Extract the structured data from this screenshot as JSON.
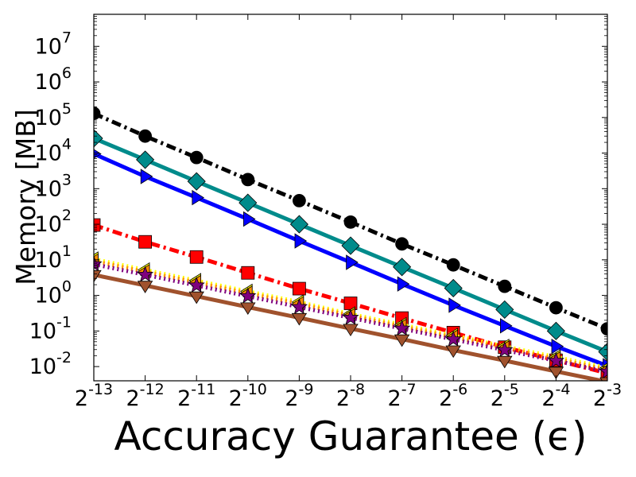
{
  "chart_data": {
    "type": "line",
    "title": "",
    "xlabel": "Accuracy Guarantee (ϵ)",
    "ylabel": "Memory [MB]",
    "x_scale": "log2",
    "y_scale": "log10",
    "x_exponents": [
      -13,
      -12,
      -11,
      -10,
      -9,
      -8,
      -7,
      -6,
      -5,
      -4,
      -3
    ],
    "xlim_exponents": [
      -13,
      -3
    ],
    "ylim_exponents": [
      -2.4,
      7.9
    ],
    "y_tick_exponents": [
      -2,
      -1,
      0,
      1,
      2,
      3,
      4,
      5,
      6,
      7
    ],
    "x_tick_labels": [
      {
        "base": "2",
        "exp": "-13"
      },
      {
        "base": "2",
        "exp": "-12"
      },
      {
        "base": "2",
        "exp": "-11"
      },
      {
        "base": "2",
        "exp": "-10"
      },
      {
        "base": "2",
        "exp": "-9"
      },
      {
        "base": "2",
        "exp": "-8"
      },
      {
        "base": "2",
        "exp": "-7"
      },
      {
        "base": "2",
        "exp": "-6"
      },
      {
        "base": "2",
        "exp": "-5"
      },
      {
        "base": "2",
        "exp": "-4"
      },
      {
        "base": "2",
        "exp": "-3"
      }
    ],
    "y_tick_labels": [
      {
        "base": "10",
        "exp": "-2"
      },
      {
        "base": "10",
        "exp": "-1"
      },
      {
        "base": "10",
        "exp": "0"
      },
      {
        "base": "10",
        "exp": "1"
      },
      {
        "base": "10",
        "exp": "2"
      },
      {
        "base": "10",
        "exp": "3"
      },
      {
        "base": "10",
        "exp": "4"
      },
      {
        "base": "10",
        "exp": "5"
      },
      {
        "base": "10",
        "exp": "6"
      },
      {
        "base": "10",
        "exp": "7"
      }
    ],
    "grid": false,
    "legend": "none",
    "series": [
      {
        "color": "#000000",
        "dash": "dashdot",
        "marker": "circle",
        "values": [
          130000,
          30000,
          7500,
          1800,
          460,
          115,
          28,
          7.2,
          1.8,
          0.45,
          0.115
        ]
      },
      {
        "color": "#008B8B",
        "dash": "solid",
        "marker": "diamond",
        "values": [
          26000,
          6500,
          1600,
          400,
          100,
          25,
          6.3,
          1.6,
          0.4,
          0.1,
          0.026
        ]
      },
      {
        "color": "#0000FF",
        "dash": "solid",
        "marker": "triangle-right",
        "values": [
          9500,
          2200,
          560,
          140,
          34,
          8.5,
          2.1,
          0.53,
          0.14,
          0.037,
          0.0105
        ]
      },
      {
        "color": "#FF0000",
        "dash": "dashdot",
        "marker": "square",
        "values": [
          95,
          32,
          12,
          4.3,
          1.55,
          0.6,
          0.23,
          0.09,
          0.035,
          0.015,
          0.0065
        ]
      },
      {
        "color": "#FFFF00",
        "dash": "dotted",
        "marker": "triangle-left",
        "values": [
          10.5,
          5.2,
          2.6,
          1.3,
          0.65,
          0.3,
          0.15,
          0.075,
          0.037,
          0.0185,
          0.0093
        ]
      },
      {
        "color": "#FF8C00",
        "dash": "dotted",
        "marker": "triangle-left",
        "values": [
          9.2,
          4.6,
          2.3,
          1.15,
          0.58,
          0.27,
          0.135,
          0.067,
          0.033,
          0.0165,
          0.0082
        ]
      },
      {
        "color": "#7F007F",
        "dash": "dotted",
        "marker": "star",
        "values": [
          7.5,
          3.8,
          1.9,
          0.95,
          0.47,
          0.235,
          0.117,
          0.058,
          0.029,
          0.0145,
          0.0072
        ]
      },
      {
        "color": "#A0522D",
        "dash": "solid",
        "marker": "triangle-down",
        "values": [
          3.8,
          1.9,
          0.95,
          0.47,
          0.235,
          0.117,
          0.059,
          0.029,
          0.0147,
          0.0073,
          0.0037
        ]
      }
    ]
  }
}
